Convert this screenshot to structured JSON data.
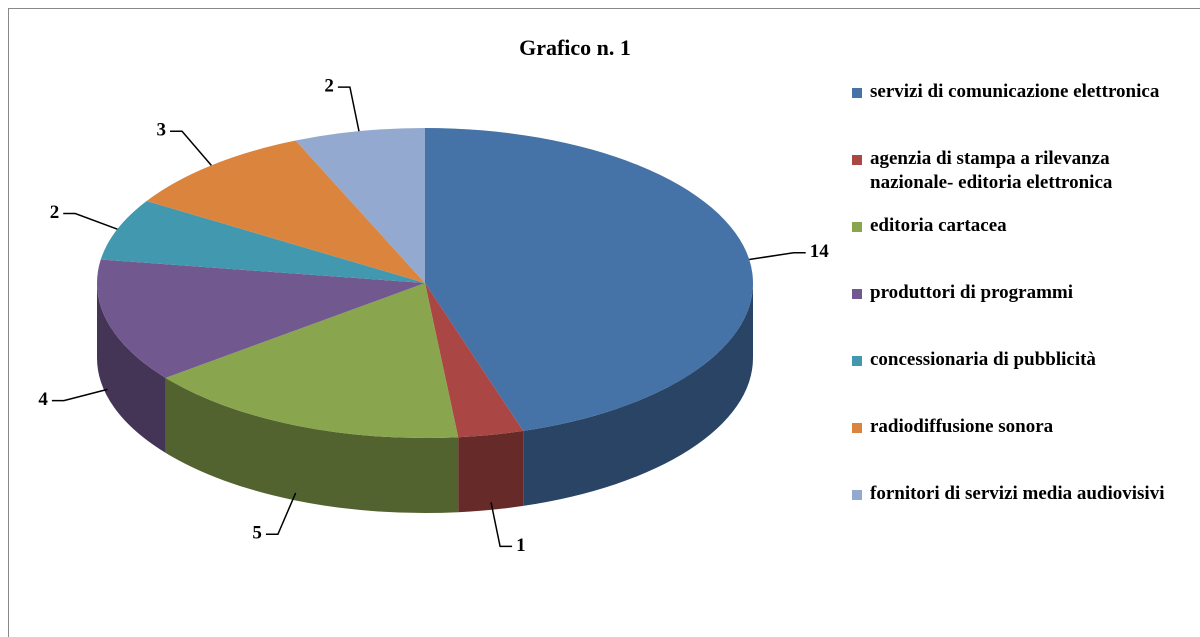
{
  "chart_data": {
    "type": "pie",
    "title": "Grafico n. 1",
    "categories": [
      "servizi di comunicazione elettronica",
      "agenzia di stampa a rilevanza nazionale- editoria elettronica",
      "editoria cartacea",
      "produttori di programmi",
      "concessionaria di pubblicità",
      "radiodiffusione sonora",
      "fornitori di servizi media audiovisivi"
    ],
    "values": [
      14,
      1,
      5,
      4,
      2,
      3,
      2
    ],
    "colors": [
      "#4572a7",
      "#aa4643",
      "#89a54e",
      "#71588f",
      "#4198af",
      "#db843d",
      "#93a9cf"
    ],
    "legend": "right"
  }
}
